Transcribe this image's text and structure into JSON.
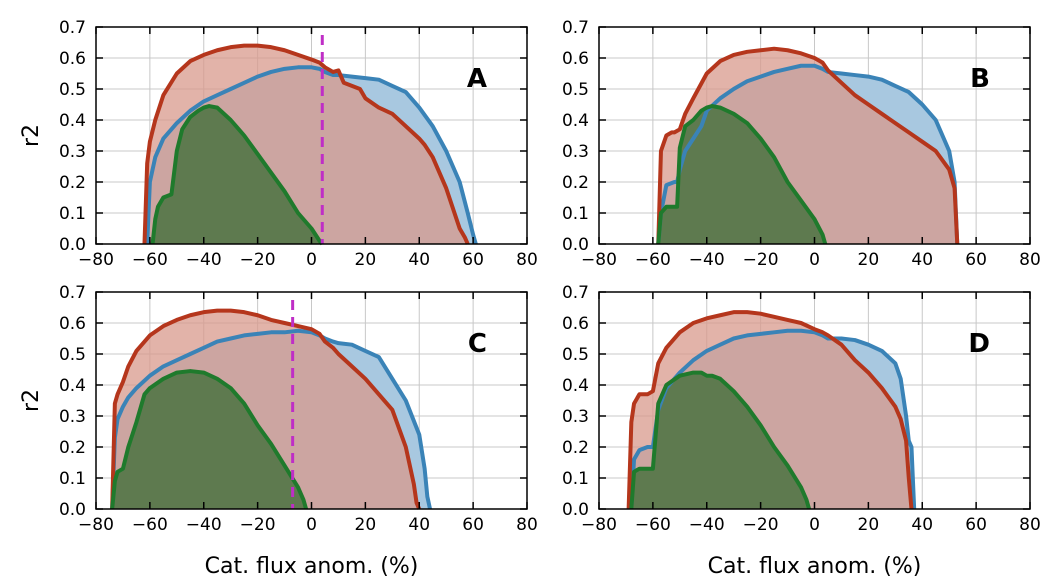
{
  "chart_data": [
    {
      "type": "area",
      "panel_label": "A",
      "ylabel": "r2",
      "xlabel": "",
      "xlim": [
        -80,
        80
      ],
      "ylim": [
        0,
        0.7
      ],
      "xticks": [
        "−80",
        "−60",
        "−40",
        "−20",
        "0",
        "20",
        "40",
        "60",
        "80"
      ],
      "yticks": [
        "0.0",
        "0.1",
        "0.2",
        "0.3",
        "0.4",
        "0.5",
        "0.6",
        "0.7"
      ],
      "grid": true,
      "vline": {
        "x": 4,
        "color": "#bf2ec6",
        "style": "dashed"
      },
      "series": [
        {
          "color": "#3a83b7",
          "fill": "#a8c8e0",
          "x": [
            -61,
            -60,
            -58,
            -55,
            -50,
            -45,
            -40,
            -35,
            -30,
            -25,
            -20,
            -15,
            -10,
            -5,
            0,
            3,
            5,
            8,
            10,
            15,
            20,
            25,
            30,
            35,
            40,
            45,
            50,
            55,
            58,
            60,
            61
          ],
          "y": [
            0,
            0.2,
            0.28,
            0.34,
            0.39,
            0.43,
            0.46,
            0.48,
            0.5,
            0.52,
            0.54,
            0.555,
            0.565,
            0.57,
            0.57,
            0.565,
            0.555,
            0.545,
            0.545,
            0.54,
            0.535,
            0.53,
            0.51,
            0.49,
            0.44,
            0.38,
            0.3,
            0.2,
            0.1,
            0.03,
            0
          ]
        },
        {
          "color": "#b5361c",
          "fill": "#d89a8c",
          "x": [
            -62,
            -61,
            -60,
            -58,
            -55,
            -50,
            -45,
            -40,
            -35,
            -30,
            -25,
            -20,
            -15,
            -10,
            -5,
            0,
            3,
            5,
            8,
            10,
            12,
            15,
            18,
            20,
            25,
            30,
            35,
            40,
            42,
            45,
            50,
            55,
            57,
            58
          ],
          "y": [
            0,
            0.26,
            0.33,
            0.4,
            0.48,
            0.55,
            0.59,
            0.61,
            0.625,
            0.635,
            0.64,
            0.64,
            0.635,
            0.625,
            0.61,
            0.595,
            0.585,
            0.57,
            0.555,
            0.56,
            0.52,
            0.51,
            0.5,
            0.47,
            0.44,
            0.42,
            0.38,
            0.34,
            0.32,
            0.28,
            0.18,
            0.05,
            0.02,
            0
          ]
        },
        {
          "color": "#1f7a2c",
          "fill": "#5e7a4f",
          "x": [
            -59,
            -58,
            -57,
            -55,
            -52,
            -50,
            -48,
            -45,
            -42,
            -40,
            -38,
            -35,
            -30,
            -25,
            -20,
            -15,
            -10,
            -5,
            0,
            3,
            4
          ],
          "y": [
            0,
            0.08,
            0.12,
            0.15,
            0.16,
            0.3,
            0.37,
            0.41,
            0.43,
            0.44,
            0.445,
            0.44,
            0.4,
            0.35,
            0.29,
            0.23,
            0.17,
            0.1,
            0.05,
            0.01,
            0
          ]
        }
      ]
    },
    {
      "type": "area",
      "panel_label": "B",
      "ylabel": "",
      "xlabel": "",
      "xlim": [
        -80,
        80
      ],
      "ylim": [
        0,
        0.7
      ],
      "xticks": [
        "−80",
        "−60",
        "−40",
        "−20",
        "0",
        "20",
        "40",
        "60",
        "80"
      ],
      "yticks": [
        "0.0",
        "0.1",
        "0.2",
        "0.3",
        "0.4",
        "0.5",
        "0.6",
        "0.7"
      ],
      "grid": true,
      "vline": null,
      "series": [
        {
          "color": "#3a83b7",
          "fill": "#a8c8e0",
          "x": [
            -58,
            -57,
            -55,
            -52,
            -51,
            -50,
            -48,
            -45,
            -42,
            -40,
            -35,
            -30,
            -25,
            -20,
            -15,
            -10,
            -5,
            0,
            3,
            5,
            10,
            15,
            20,
            25,
            30,
            35,
            40,
            45,
            50,
            52,
            53
          ],
          "y": [
            0,
            0.1,
            0.19,
            0.2,
            0.2,
            0.24,
            0.3,
            0.34,
            0.38,
            0.43,
            0.47,
            0.5,
            0.525,
            0.54,
            0.555,
            0.565,
            0.575,
            0.575,
            0.565,
            0.555,
            0.55,
            0.545,
            0.54,
            0.53,
            0.51,
            0.49,
            0.45,
            0.4,
            0.3,
            0.2,
            0
          ]
        },
        {
          "color": "#b5361c",
          "fill": "#d89a8c",
          "x": [
            -58,
            -57,
            -55,
            -53,
            -52,
            -50,
            -48,
            -45,
            -40,
            -35,
            -30,
            -25,
            -20,
            -15,
            -10,
            -5,
            0,
            3,
            5,
            10,
            15,
            20,
            25,
            30,
            35,
            40,
            45,
            50,
            52,
            53
          ],
          "y": [
            0,
            0.3,
            0.35,
            0.36,
            0.36,
            0.37,
            0.42,
            0.47,
            0.55,
            0.59,
            0.61,
            0.62,
            0.625,
            0.63,
            0.625,
            0.615,
            0.6,
            0.585,
            0.56,
            0.52,
            0.48,
            0.45,
            0.42,
            0.39,
            0.36,
            0.33,
            0.3,
            0.24,
            0.18,
            0
          ]
        },
        {
          "color": "#1f7a2c",
          "fill": "#5e7a4f",
          "x": [
            -58,
            -57,
            -55,
            -52,
            -51,
            -50,
            -48,
            -45,
            -42,
            -40,
            -38,
            -35,
            -30,
            -25,
            -20,
            -15,
            -10,
            -5,
            0,
            3,
            4
          ],
          "y": [
            0,
            0.1,
            0.12,
            0.12,
            0.12,
            0.31,
            0.38,
            0.4,
            0.43,
            0.44,
            0.445,
            0.44,
            0.42,
            0.39,
            0.34,
            0.28,
            0.2,
            0.14,
            0.08,
            0.03,
            0
          ]
        }
      ]
    },
    {
      "type": "area",
      "panel_label": "C",
      "ylabel": "r2",
      "xlabel": "Cat. flux anom. (%)",
      "xlim": [
        -80,
        80
      ],
      "ylim": [
        0,
        0.7
      ],
      "xticks": [
        "−80",
        "−60",
        "−40",
        "−20",
        "0",
        "20",
        "40",
        "60",
        "80"
      ],
      "yticks": [
        "0.0",
        "0.1",
        "0.2",
        "0.3",
        "0.4",
        "0.5",
        "0.6",
        "0.7"
      ],
      "grid": true,
      "vline": {
        "x": -7,
        "color": "#bf2ec6",
        "style": "dashed"
      },
      "series": [
        {
          "color": "#3a83b7",
          "fill": "#a8c8e0",
          "x": [
            -74,
            -73,
            -72,
            -70,
            -68,
            -65,
            -60,
            -55,
            -50,
            -45,
            -40,
            -35,
            -30,
            -25,
            -20,
            -15,
            -10,
            -5,
            0,
            3,
            5,
            8,
            10,
            15,
            20,
            25,
            30,
            35,
            40,
            42,
            43,
            44
          ],
          "y": [
            0,
            0.23,
            0.29,
            0.33,
            0.36,
            0.39,
            0.43,
            0.46,
            0.48,
            0.5,
            0.52,
            0.54,
            0.55,
            0.56,
            0.565,
            0.57,
            0.57,
            0.575,
            0.57,
            0.56,
            0.55,
            0.54,
            0.535,
            0.53,
            0.51,
            0.49,
            0.42,
            0.35,
            0.24,
            0.13,
            0.04,
            0
          ]
        },
        {
          "color": "#b5361c",
          "fill": "#d89a8c",
          "x": [
            -74,
            -73,
            -72,
            -70,
            -68,
            -65,
            -60,
            -55,
            -50,
            -45,
            -40,
            -35,
            -30,
            -25,
            -20,
            -15,
            -10,
            -5,
            0,
            3,
            5,
            8,
            10,
            15,
            20,
            25,
            30,
            35,
            38,
            39,
            40
          ],
          "y": [
            0,
            0.34,
            0.37,
            0.41,
            0.46,
            0.51,
            0.56,
            0.59,
            0.61,
            0.625,
            0.635,
            0.64,
            0.64,
            0.635,
            0.625,
            0.61,
            0.6,
            0.59,
            0.58,
            0.565,
            0.54,
            0.52,
            0.5,
            0.46,
            0.42,
            0.37,
            0.32,
            0.2,
            0.08,
            0.02,
            0
          ]
        },
        {
          "color": "#1f7a2c",
          "fill": "#5e7a4f",
          "x": [
            -74,
            -73,
            -72,
            -70,
            -68,
            -65,
            -62,
            -60,
            -55,
            -50,
            -45,
            -40,
            -35,
            -30,
            -25,
            -20,
            -15,
            -10,
            -5,
            -3,
            -2
          ],
          "y": [
            0,
            0.09,
            0.12,
            0.13,
            0.2,
            0.28,
            0.37,
            0.39,
            0.42,
            0.44,
            0.445,
            0.44,
            0.42,
            0.39,
            0.34,
            0.27,
            0.21,
            0.14,
            0.07,
            0.03,
            0
          ]
        }
      ]
    },
    {
      "type": "area",
      "panel_label": "D",
      "ylabel": "",
      "xlabel": "Cat. flux anom. (%)",
      "xlim": [
        -80,
        80
      ],
      "ylim": [
        0,
        0.7
      ],
      "xticks": [
        "−80",
        "−60",
        "−40",
        "−20",
        "0",
        "20",
        "40",
        "60",
        "80"
      ],
      "yticks": [
        "0.0",
        "0.1",
        "0.2",
        "0.3",
        "0.4",
        "0.5",
        "0.6",
        "0.7"
      ],
      "grid": true,
      "vline": null,
      "series": [
        {
          "color": "#3a83b7",
          "fill": "#a8c8e0",
          "x": [
            -68,
            -67,
            -65,
            -62,
            -60,
            -58,
            -55,
            -50,
            -45,
            -40,
            -35,
            -30,
            -25,
            -20,
            -15,
            -10,
            -5,
            0,
            3,
            5,
            10,
            15,
            20,
            25,
            30,
            32,
            34,
            35,
            36,
            37
          ],
          "y": [
            0,
            0.16,
            0.19,
            0.2,
            0.2,
            0.32,
            0.39,
            0.44,
            0.48,
            0.51,
            0.53,
            0.55,
            0.56,
            0.565,
            0.57,
            0.575,
            0.575,
            0.57,
            0.56,
            0.55,
            0.55,
            0.545,
            0.53,
            0.51,
            0.47,
            0.42,
            0.3,
            0.22,
            0.2,
            0
          ]
        },
        {
          "color": "#b5361c",
          "fill": "#d89a8c",
          "x": [
            -69,
            -68,
            -67,
            -65,
            -62,
            -60,
            -58,
            -55,
            -50,
            -45,
            -40,
            -35,
            -30,
            -25,
            -20,
            -15,
            -10,
            -5,
            0,
            3,
            5,
            10,
            15,
            20,
            25,
            30,
            32,
            34,
            35,
            36
          ],
          "y": [
            0,
            0.28,
            0.34,
            0.37,
            0.37,
            0.38,
            0.47,
            0.52,
            0.57,
            0.6,
            0.615,
            0.625,
            0.635,
            0.635,
            0.63,
            0.62,
            0.61,
            0.6,
            0.58,
            0.57,
            0.56,
            0.53,
            0.48,
            0.44,
            0.39,
            0.33,
            0.29,
            0.22,
            0.1,
            0
          ]
        },
        {
          "color": "#1f7a2c",
          "fill": "#5e7a4f",
          "x": [
            -68,
            -67,
            -65,
            -62,
            -60,
            -58,
            -55,
            -50,
            -45,
            -42,
            -40,
            -38,
            -35,
            -30,
            -25,
            -20,
            -15,
            -10,
            -5,
            -3,
            -2
          ],
          "y": [
            0,
            0.12,
            0.13,
            0.13,
            0.13,
            0.34,
            0.4,
            0.43,
            0.44,
            0.44,
            0.43,
            0.43,
            0.42,
            0.38,
            0.33,
            0.27,
            0.2,
            0.14,
            0.07,
            0.03,
            0
          ]
        }
      ]
    }
  ]
}
